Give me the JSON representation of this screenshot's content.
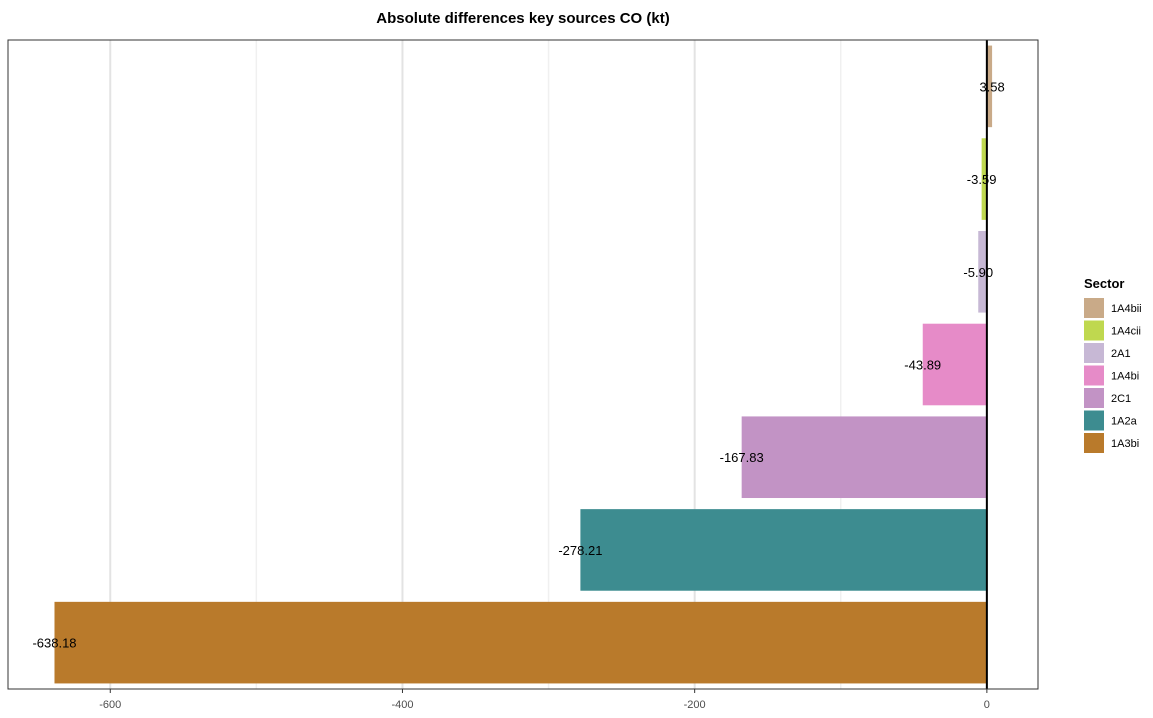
{
  "chart_data": {
    "type": "bar",
    "orientation": "horizontal",
    "title": "Absolute differences key sources CO (kt)",
    "xlabel": "",
    "ylabel": "",
    "categories": [
      "1A4bii",
      "1A4cii",
      "2A1",
      "1A4bi",
      "2C1",
      "1A2a",
      "1A3bi"
    ],
    "values": [
      3.58,
      -3.59,
      -5.9,
      -43.89,
      -167.83,
      -278.21,
      -638.18
    ],
    "labels": [
      "3.58",
      "-3.59",
      "-5.90",
      "-43.89",
      "-167.83",
      "-278.21",
      "-638.18"
    ],
    "colors": [
      "#C9AA88",
      "#BFD84F",
      "#C7B8D5",
      "#E68BC8",
      "#C293C5",
      "#3D8C90",
      "#B97A2B"
    ],
    "xlim": [
      -670,
      35
    ],
    "xticks": [
      -600,
      -400,
      -200,
      0
    ],
    "xtick_labels": [
      "-600",
      "-400",
      "-200",
      "0"
    ],
    "grid": true,
    "legend": {
      "title": "Sector",
      "placement": "right",
      "items": [
        "1A4bii",
        "1A4cii",
        "2A1",
        "1A4bi",
        "2C1",
        "1A2a",
        "1A3bi"
      ]
    }
  }
}
